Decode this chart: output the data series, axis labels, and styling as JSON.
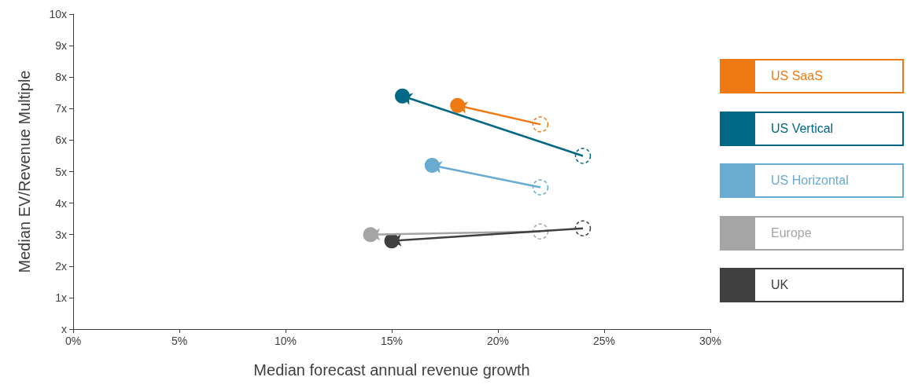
{
  "chart_data": {
    "type": "scatter",
    "xlabel": "Median forecast annual revenue growth",
    "ylabel": "Median EV/Revenue Multiple",
    "xlim": [
      0,
      30
    ],
    "xticks": [
      {
        "value": 0,
        "label": "0%"
      },
      {
        "value": 5,
        "label": "5%"
      },
      {
        "value": 10,
        "label": "10%"
      },
      {
        "value": 15,
        "label": "15%"
      },
      {
        "value": 20,
        "label": "20%"
      },
      {
        "value": 25,
        "label": "25%"
      },
      {
        "value": 30,
        "label": "30%"
      }
    ],
    "ylim": [
      0,
      10
    ],
    "yticks": [
      {
        "value": 0,
        "label": "x"
      },
      {
        "value": 1,
        "label": "1x"
      },
      {
        "value": 2,
        "label": "2x"
      },
      {
        "value": 3,
        "label": "3x"
      },
      {
        "value": 4,
        "label": "4x"
      },
      {
        "value": 5,
        "label": "5x"
      },
      {
        "value": 6,
        "label": "6x"
      },
      {
        "value": 7,
        "label": "7x"
      },
      {
        "value": 8,
        "label": "8x"
      },
      {
        "value": 9,
        "label": "9x"
      },
      {
        "value": 10,
        "label": "10x"
      }
    ],
    "grid": false,
    "legend": "right",
    "marker": "circle",
    "series": [
      {
        "name": "US SaaS",
        "color": "#ef7a14",
        "x": [
          22,
          18.1
        ],
        "values": [
          6.5,
          7.1
        ]
      },
      {
        "name": "US Vertical",
        "color": "#006985",
        "x": [
          24,
          15.5
        ],
        "values": [
          5.5,
          7.4
        ]
      },
      {
        "name": "US Horizontal",
        "color": "#6aabd2",
        "x": [
          22,
          16.9
        ],
        "values": [
          4.5,
          5.2
        ]
      },
      {
        "name": "Europe",
        "color": "#a5a5a5",
        "x": [
          22,
          14
        ],
        "values": [
          3.1,
          3
        ]
      },
      {
        "name": "UK",
        "color": "#404040",
        "x": [
          24,
          15
        ],
        "values": [
          3.2,
          2.8
        ]
      }
    ]
  }
}
